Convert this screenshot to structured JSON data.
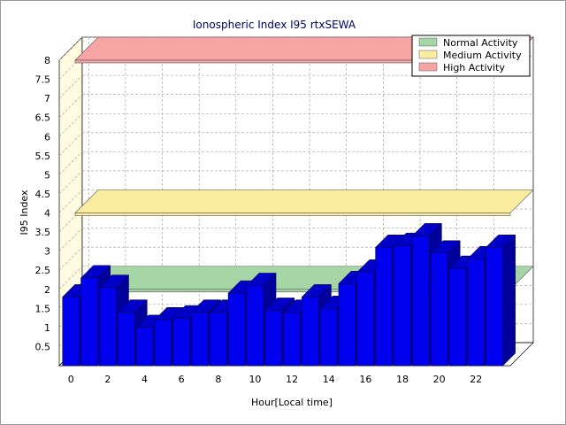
{
  "chart_data": {
    "type": "bar",
    "title": "Ionospheric Index I95 rtxSEWA",
    "xlabel": "Hour[Local time]",
    "ylabel": "I95 Index",
    "x": [
      0,
      1,
      2,
      3,
      4,
      5,
      6,
      7,
      8,
      9,
      10,
      11,
      12,
      13,
      14,
      15,
      16,
      17,
      18,
      19,
      20,
      21,
      22,
      23
    ],
    "values": [
      1.8,
      2.3,
      2.05,
      1.4,
      1.0,
      1.2,
      1.25,
      1.4,
      1.4,
      1.9,
      2.1,
      1.45,
      1.4,
      1.8,
      1.5,
      2.15,
      2.45,
      3.1,
      3.15,
      3.4,
      2.95,
      2.55,
      2.8,
      3.1
    ],
    "ylim": [
      0,
      8
    ],
    "xlim": [
      0,
      23
    ],
    "yticks": [
      "0.5",
      "1",
      "1.5",
      "2",
      "2.5",
      "3",
      "3.5",
      "4",
      "4.5",
      "5",
      "5.5",
      "6",
      "6.5",
      "7",
      "7.5",
      "8"
    ],
    "xticks": [
      "0",
      "2",
      "4",
      "6",
      "8",
      "10",
      "12",
      "14",
      "16",
      "18",
      "20",
      "22"
    ],
    "bands": [
      {
        "name": "Normal Activity",
        "value": 2,
        "color": "#a6d6a6"
      },
      {
        "name": "Medium Activity",
        "value": 4,
        "color": "#fbeda0"
      },
      {
        "name": "High Activity",
        "value": 8,
        "color": "#f6a4a4"
      }
    ],
    "bar_color": "#0000ee",
    "grid": true,
    "legend_position": "top-right"
  }
}
